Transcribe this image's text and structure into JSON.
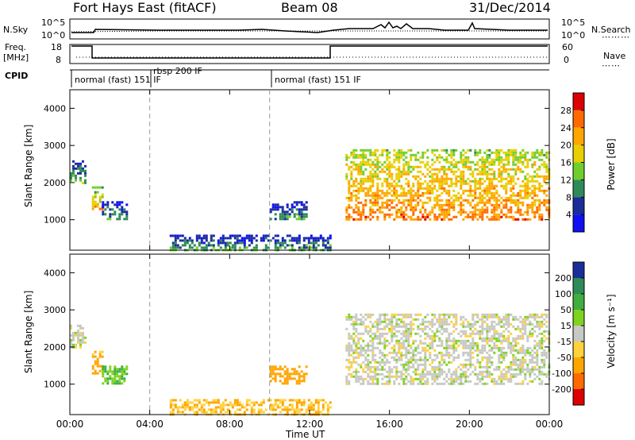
{
  "header": {
    "station": "Fort Hays East (fitACF)",
    "beam": "Beam 08",
    "date": "31/Dec/2014"
  },
  "panels": {
    "nsky_label": "N.Sky",
    "nsky_ticks": [
      "10^5",
      "10^0"
    ],
    "nsearch_label": "N.Search",
    "nsearch_ticks": [
      "10^5",
      "10^0"
    ],
    "freq_label_1": "Freq.",
    "freq_label_2": "[MHz]",
    "freq_ticks": [
      "18",
      "8"
    ],
    "nave_label": "Nave",
    "nave_ticks": [
      "60",
      "0"
    ],
    "cpid_label": "CPID",
    "cpid_modes": [
      "normal (fast) 151 IF",
      "rbsp 200 IF",
      "normal (fast) 151 IF"
    ]
  },
  "power_scale": {
    "label": "Power [dB]",
    "ticks": [
      "28",
      "24",
      "20",
      "16",
      "12",
      "8",
      "4"
    ],
    "colors": [
      "#dd0000",
      "#ff6a00",
      "#ffa500",
      "#e8d000",
      "#6fce2d",
      "#2e8b57",
      "#1c2d9a",
      "#1010f0"
    ]
  },
  "velocity_scale": {
    "label": "Velocity [m s⁻¹]",
    "ticks": [
      "200",
      "100",
      "50",
      "15",
      "-15",
      "-50",
      "-100",
      "-200"
    ],
    "colors": [
      "#1c2d9a",
      "#2e8b57",
      "#3fae3f",
      "#7ed321",
      "#c8c8c4",
      "#ffd23c",
      "#ffa500",
      "#ff6a00",
      "#dd0000"
    ]
  },
  "x_axis": {
    "label": "Time UT",
    "ticks": [
      "00:00",
      "04:00",
      "08:00",
      "12:00",
      "16:00",
      "20:00",
      "00:00"
    ]
  },
  "chart_data": [
    {
      "type": "heatmap",
      "title": "Power [dB]",
      "xlabel": "Time UT",
      "ylabel": "Slant Range [km]",
      "xlim": [
        0,
        24
      ],
      "ylim": [
        180,
        4500
      ],
      "yticks": [
        "1000",
        "2000",
        "3000",
        "4000"
      ],
      "regions": [
        {
          "t0": 0.0,
          "t1": 0.8,
          "r0": 2000,
          "r1": 2600,
          "power": 7
        },
        {
          "t0": 1.1,
          "t1": 1.6,
          "r0": 1300,
          "r1": 1900,
          "power": 16
        },
        {
          "t0": 1.6,
          "t1": 2.8,
          "r0": 1050,
          "r1": 1500,
          "power": 5
        },
        {
          "t0": 10.0,
          "t1": 11.8,
          "r0": 1000,
          "r1": 1500,
          "power": 5
        },
        {
          "t0": 5.0,
          "t1": 13.0,
          "r0": 180,
          "r1": 600,
          "power": 6
        },
        {
          "t0": 13.8,
          "t1": 24.0,
          "r0": 1000,
          "r1": 2900,
          "power": 18
        }
      ]
    },
    {
      "type": "heatmap",
      "title": "Velocity [m s⁻¹]",
      "xlabel": "Time UT",
      "ylabel": "Slant Range [km]",
      "xlim": [
        0,
        24
      ],
      "ylim": [
        180,
        4500
      ],
      "yticks": [
        "1000",
        "2000",
        "3000",
        "4000"
      ],
      "regions": [
        {
          "t0": 0.0,
          "t1": 0.8,
          "r0": 2000,
          "r1": 2600,
          "velocity": 0
        },
        {
          "t0": 1.1,
          "t1": 1.6,
          "r0": 1300,
          "r1": 1900,
          "velocity": -40
        },
        {
          "t0": 1.6,
          "t1": 2.8,
          "r0": 1050,
          "r1": 1500,
          "velocity": 30
        },
        {
          "t0": 10.0,
          "t1": 11.8,
          "r0": 1000,
          "r1": 1500,
          "velocity": -60
        },
        {
          "t0": 5.0,
          "t1": 13.0,
          "r0": 180,
          "r1": 600,
          "velocity": -30
        },
        {
          "t0": 13.8,
          "t1": 24.0,
          "r0": 1000,
          "r1": 2900,
          "velocity": 0
        }
      ]
    }
  ]
}
